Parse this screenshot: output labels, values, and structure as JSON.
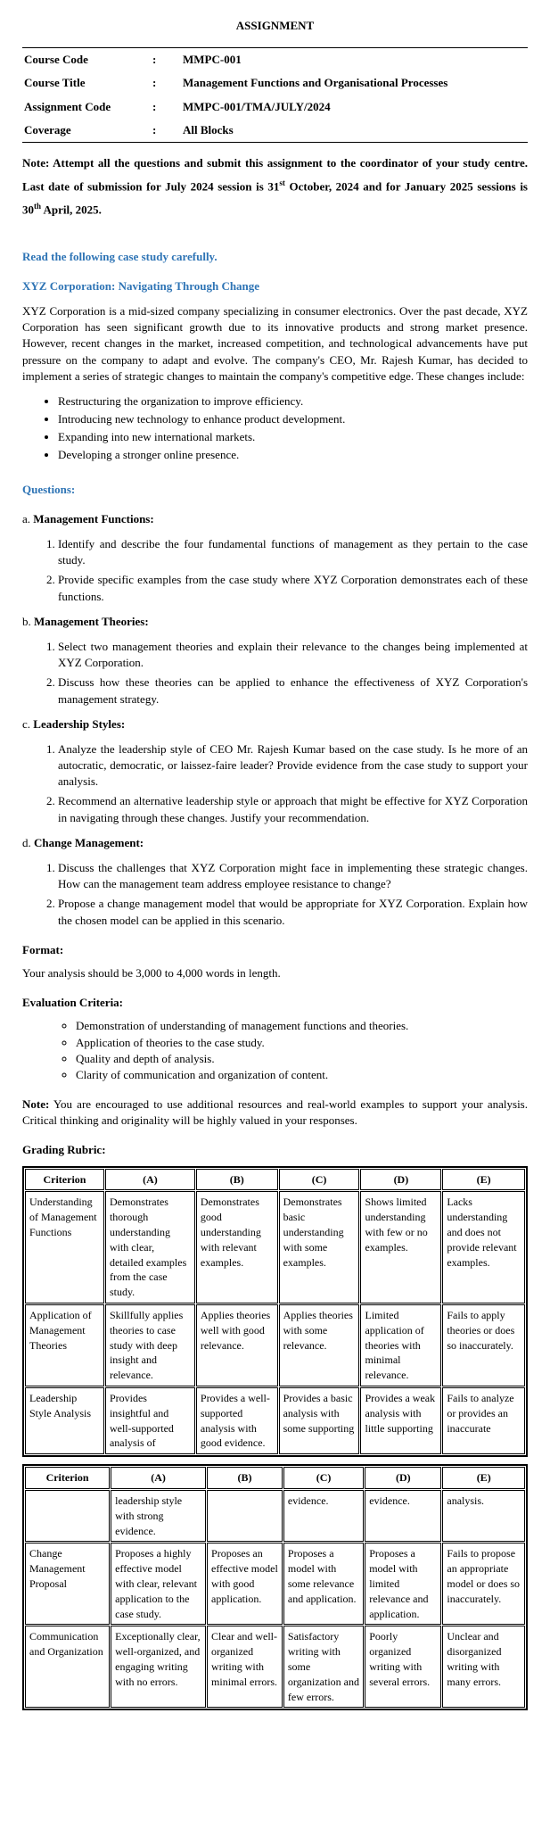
{
  "title": "ASSIGNMENT",
  "info": {
    "rows": [
      {
        "label": "Course Code",
        "value": "MMPC-001"
      },
      {
        "label": "Course Title",
        "value": "Management Functions and Organisational Processes"
      },
      {
        "label": "Assignment Code",
        "value": "MMPC-001/TMA/JULY/2024"
      },
      {
        "label": "Coverage",
        "value": "All Blocks"
      }
    ]
  },
  "note": {
    "prefix": "Note: Attempt all the questions and submit this assignment to the coordinator of your study centre. Last date of submission for July 2024 session is 31",
    "sup1": "st",
    "mid": " October, 2024 and for January 2025 sessions is 30",
    "sup2": "th",
    "suffix": " April, 2025."
  },
  "read_heading": "Read the following case study carefully.",
  "case_title": "XYZ Corporation: Navigating Through Change",
  "case_body": "XYZ Corporation is a mid-sized company specializing in consumer electronics. Over the past decade, XYZ Corporation has seen significant growth due to its innovative products and strong market presence. However, recent changes in the market, increased competition, and technological advancements have put pressure on the company to adapt and evolve. The company's CEO, Mr. Rajesh Kumar, has decided to implement a series of strategic changes to maintain the company's competitive edge. These changes include:",
  "changes": [
    "Restructuring the organization to improve efficiency.",
    "Introducing new technology to enhance product development.",
    "Expanding into new international markets.",
    "Developing a stronger online presence."
  ],
  "questions_heading": "Questions:",
  "sections": [
    {
      "label": "a. Management Functions:",
      "items": [
        "Identify and describe the four fundamental functions of management as they pertain to the case study.",
        "Provide specific examples from the case study where XYZ Corporation demonstrates each of these functions."
      ]
    },
    {
      "label": "b. Management Theories:",
      "items": [
        "Select two management theories  and explain their relevance to the changes being implemented at XYZ Corporation.",
        "Discuss how these theories can be applied to enhance the effectiveness of XYZ Corporation's management strategy."
      ]
    },
    {
      "label": "c. Leadership Styles:",
      "items": [
        "Analyze the leadership style of CEO Mr. Rajesh Kumar based on the case study. Is he more of an autocratic, democratic, or laissez-faire leader? Provide evidence from the case study to support your analysis.",
        "Recommend an alternative leadership style or approach that might be effective for XYZ Corporation in navigating through these changes. Justify your recommendation."
      ]
    },
    {
      "label": "d. Change Management:",
      "items": [
        "Discuss the challenges that XYZ Corporation might face in implementing these strategic changes. How can the management team address employee resistance to change?",
        "Propose a change management model  that would be appropriate for XYZ Corporation. Explain how the chosen model can be applied in this scenario."
      ]
    }
  ],
  "format_heading": "Format:",
  "format_text": "Your analysis should be 3,000 to 4,000 words in length.",
  "eval_heading": "Evaluation Criteria:",
  "eval_items": [
    "Demonstration of understanding of management functions and theories.",
    "Application of theories to the case study.",
    "Quality and depth of analysis.",
    "Clarity of communication and organization of content."
  ],
  "note2_bold": "Note:",
  "note2_text": " You are encouraged to use additional resources and real-world examples to support your analysis. Critical thinking and originality will be highly valued in your responses.",
  "rubric_heading": "Grading Rubric:",
  "rubric1": {
    "headers": [
      "Criterion",
      "(A)",
      "(B)",
      "(C)",
      "(D)",
      "(E)"
    ],
    "rows": [
      [
        "Understanding of Management Functions",
        "Demonstrates thorough understanding with clear, detailed examples from the case study.",
        "Demonstrates good understanding with relevant examples.",
        "Demonstrates basic understanding with some examples.",
        "Shows limited understanding with few or no examples.",
        "Lacks understanding and does not provide relevant examples."
      ],
      [
        "Application of Management Theories",
        "Skillfully applies theories to case study with deep insight and relevance.",
        "Applies theories well with good relevance.",
        "Applies theories with some relevance.",
        "Limited application of theories with minimal relevance.",
        "Fails to apply theories or does so inaccurately."
      ],
      [
        "Leadership Style Analysis",
        "Provides insightful and well-supported analysis of",
        "Provides a well-supported analysis with good evidence.",
        "Provides a basic analysis with some supporting",
        "Provides a weak analysis with little supporting",
        "Fails to analyze or provides an inaccurate"
      ]
    ]
  },
  "rubric2": {
    "headers": [
      "Criterion",
      "(A)",
      "(B)",
      "(C)",
      "(D)",
      "(E)"
    ],
    "rows": [
      [
        "",
        "leadership style with strong evidence.",
        "",
        "evidence.",
        "evidence.",
        "analysis."
      ],
      [
        "Change Management Proposal",
        "Proposes a highly effective model with clear, relevant application to the case study.",
        "Proposes an effective model with good application.",
        "Proposes a model with some relevance and application.",
        "Proposes a model with limited relevance and application.",
        "Fails to propose an appropriate model or does so inaccurately."
      ],
      [
        "Communication and Organization",
        "Exceptionally clear, well-organized, and engaging writing with no errors.",
        "Clear and well-organized writing with minimal errors.",
        "Satisfactory writing with some organization and few errors.",
        "Poorly organized writing with several errors.",
        "Unclear and disorganized writing with many errors."
      ]
    ]
  }
}
